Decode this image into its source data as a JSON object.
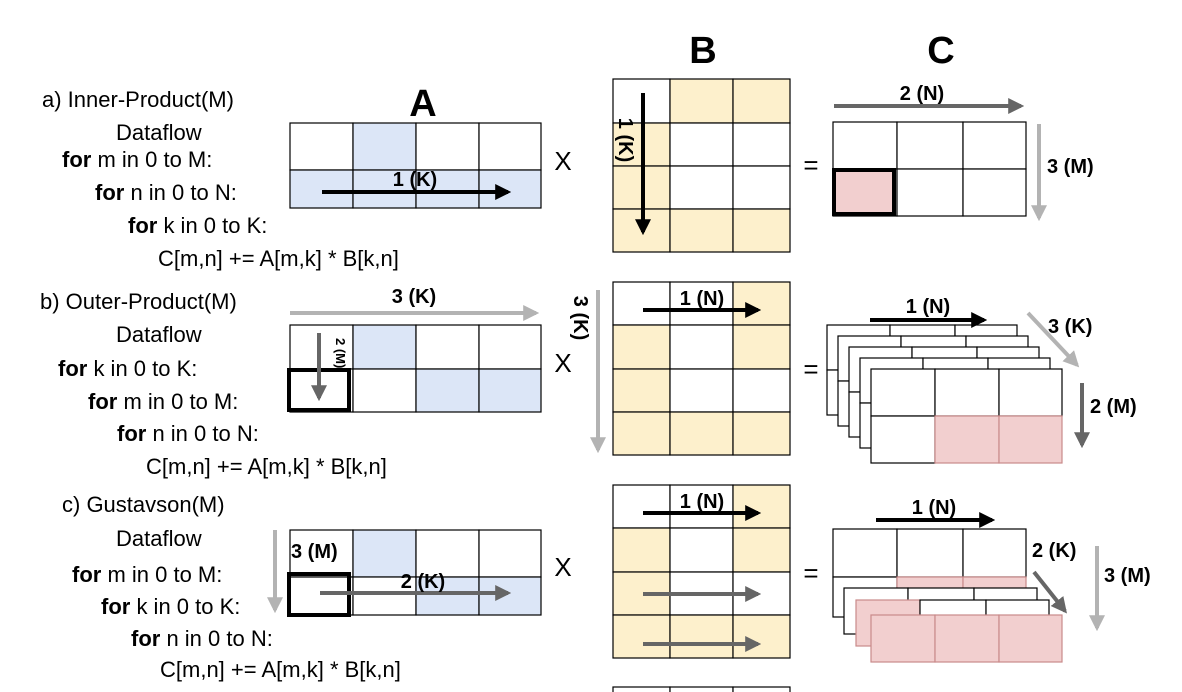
{
  "titles": {
    "a": "A",
    "b": "B",
    "c": "C"
  },
  "operators": {
    "times": "X",
    "equals": "="
  },
  "dataflows": [
    {
      "heading": "a) Inner-Product(M)",
      "subheading": "Dataflow",
      "loops": [
        {
          "kw": "for",
          "rest": " m in 0 to M:"
        },
        {
          "kw": "for",
          "rest": " n in 0 to N:"
        },
        {
          "kw": "for",
          "rest": " k in 0 to K:"
        }
      ],
      "statement": "C[m,n] += A[m,k] * B[k,n]"
    },
    {
      "heading": "b) Outer-Product(M)",
      "subheading": "Dataflow",
      "loops": [
        {
          "kw": "for",
          "rest": " k in 0 to K:"
        },
        {
          "kw": "for",
          "rest": " m in 0 to M:"
        },
        {
          "kw": "for",
          "rest": " n in 0 to N:"
        }
      ],
      "statement": "C[m,n] += A[m,k] * B[k,n]"
    },
    {
      "heading": "c) Gustavson(M)",
      "subheading": "Dataflow",
      "loops": [
        {
          "kw": "for",
          "rest": " m in 0 to M:"
        },
        {
          "kw": "for",
          "rest": " k in 0 to K:"
        },
        {
          "kw": "for",
          "rest": " n in 0 to N:"
        }
      ],
      "statement": "C[m,n] += A[m,k] * B[k,n]"
    }
  ],
  "arrow_labels": {
    "a_A": "1 (K)",
    "a_B": "1 (K)",
    "a_C_top": "2 (N)",
    "a_C_right": "3 (M)",
    "b_A_top": "3 (K)",
    "b_A_inner": "2 (M)",
    "b_B_left": "3 (K)",
    "b_B_top": "1 (N)",
    "b_C_top": "1 (N)",
    "b_C_diag": "3 (K)",
    "b_C_right": "2 (M)",
    "c_A_inner": "3 (M)",
    "c_A_row": "2 (K)",
    "c_B_top": "1 (N)",
    "c_C_top": "1 (N)",
    "c_C_diag": "2 (K)",
    "c_C_right": "3 (M)"
  },
  "colors": {
    "matrixA_fill": "#dce6f7",
    "matrixB_fill": "#fdf0cc",
    "matrixC_fill": "#f2cfcf",
    "arrow_black": "#000000",
    "arrow_dark_gray": "#666666",
    "arrow_light_gray": "#b3b3b3"
  }
}
